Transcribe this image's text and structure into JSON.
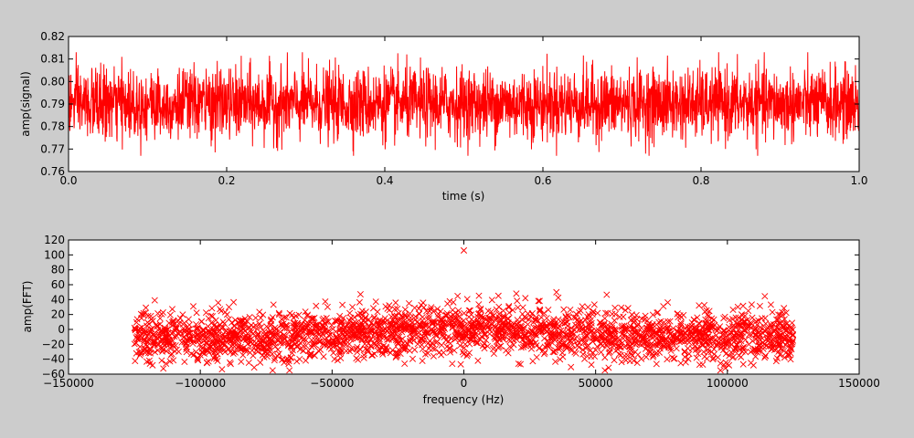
{
  "chart_data": [
    {
      "type": "line",
      "title": "",
      "xlabel": "time (s)",
      "ylabel": "amp(signal)",
      "xlim": [
        0.0,
        1.0
      ],
      "ylim": [
        0.76,
        0.82
      ],
      "x_ticks": [
        "0.0",
        "0.2",
        "0.4",
        "0.6",
        "0.8",
        "1.0"
      ],
      "y_ticks": [
        "0.76",
        "0.77",
        "0.78",
        "0.79",
        "0.80",
        "0.81",
        "0.82"
      ],
      "line_color": "#ff0000",
      "series": [
        {
          "x_range": [
            0.0,
            1.0
          ],
          "mean": 0.79,
          "band": [
            0.775,
            0.805
          ],
          "extremes": [
            0.767,
            0.813
          ]
        }
      ],
      "grid": false
    },
    {
      "type": "scatter",
      "title": "",
      "xlabel": "frequency (Hz)",
      "ylabel": "amp(FFT)",
      "xlim": [
        -150000,
        150000
      ],
      "ylim": [
        -60,
        120
      ],
      "x_ticks": [
        "−150000",
        "−100000",
        "−50000",
        "0",
        "50000",
        "100000",
        "150000"
      ],
      "y_ticks": [
        "−60",
        "−40",
        "−20",
        "0",
        "20",
        "40",
        "60",
        "80",
        "100",
        "120"
      ],
      "marker": "x",
      "marker_color": "#ff0000",
      "series": [
        {
          "x_range": [
            -125000,
            125000
          ],
          "core_band": [
            -40,
            20
          ],
          "extremes": [
            -55,
            50
          ],
          "peak": {
            "x": 0,
            "y": 106
          }
        }
      ],
      "grid": false
    }
  ]
}
